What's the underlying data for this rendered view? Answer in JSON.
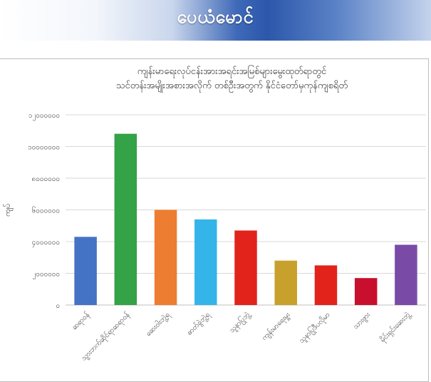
{
  "banner": {
    "title": "ပေယံမောင်"
  },
  "chart_data": {
    "type": "bar",
    "title_lines": [
      "ကျန်းမာရေးလုပ်ငန်းအားအရင်းအမြစ်များမွေးထုတ်ရာတွင်",
      "သင်တန်းအမျိုးအစားအလိုက် တစ်ဦးအတွက် နိုင်ငံတော်မှကုန်ကျစရိတ်"
    ],
    "ylabel": "ကျပ်",
    "ylim": [
      0,
      12000000
    ],
    "yticks": [
      0,
      2000000,
      4000000,
      6000000,
      8000000,
      10000000,
      12000000
    ],
    "ytick_labels": [
      "၀",
      "၂၀၀၀၀၀၀",
      "၄၀၀၀၀၀၀",
      "၆၀၀၀၀၀၀",
      "၈၀၀၀၀၀၀",
      "၁၀၀၀၀၀၀၀",
      "၁၂၀၀၀၀၀၀"
    ],
    "categories": [
      "ဆရာဝန်",
      "သွားဘက်ဆိုင်ရာဆရာဝန်",
      "ဆေးဝါးဘွဲ့ရ",
      "ဓာတ်ခွဲဘွဲ့ရ",
      "သူနာပြုဘွဲ့",
      "ကျန်းမာရေးမှူး",
      "သူနာပြုဒီပလိုမာ",
      "သားဖွား",
      "မိုင်းရှင်းဆေးဘွဲ့"
    ],
    "values": [
      4300000,
      10800000,
      6000000,
      5400000,
      4700000,
      2800000,
      2500000,
      1700000,
      3800000
    ],
    "colors": [
      "#4472c4",
      "#34a246",
      "#ed7d31",
      "#33b5e9",
      "#e2231b",
      "#c8a02c",
      "#e2231b",
      "#c8102e",
      "#7a4ba6"
    ],
    "grid": true
  }
}
